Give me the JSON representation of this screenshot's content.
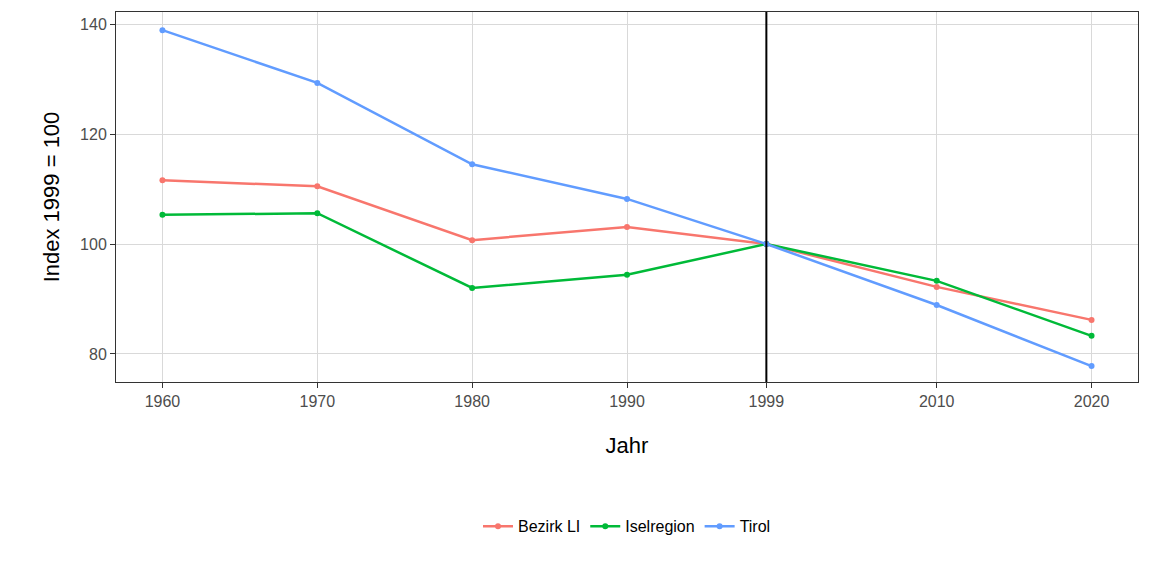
{
  "chart_data": {
    "type": "line",
    "x_label": "Jahr",
    "y_label": "Index 1999 = 100",
    "x": [
      1960,
      1970,
      1980,
      1990,
      1999,
      2010,
      2020
    ],
    "series": [
      {
        "name": "Bezirk LI",
        "color": "#F8766D",
        "values": [
          111.6,
          110.5,
          100.7,
          103.1,
          100,
          92.2,
          86.2
        ]
      },
      {
        "name": "Iselregion",
        "color": "#00BA38",
        "values": [
          105.3,
          105.6,
          92.0,
          94.4,
          100,
          93.3,
          83.3
        ]
      },
      {
        "name": "Tirol",
        "color": "#619CFF",
        "values": [
          138.9,
          129.3,
          114.5,
          108.2,
          100,
          88.9,
          77.8
        ]
      }
    ],
    "xlim": [
      1957,
      2023
    ],
    "xticks": [
      1960,
      1970,
      1980,
      1990,
      1999,
      2010,
      2020
    ],
    "ylim": [
      74.9,
      142.2
    ],
    "yticks": [
      80,
      100,
      120,
      140
    ],
    "vline": 1999,
    "grid": true,
    "legend": "bottom",
    "marker": "circle",
    "line_style": "solid"
  }
}
